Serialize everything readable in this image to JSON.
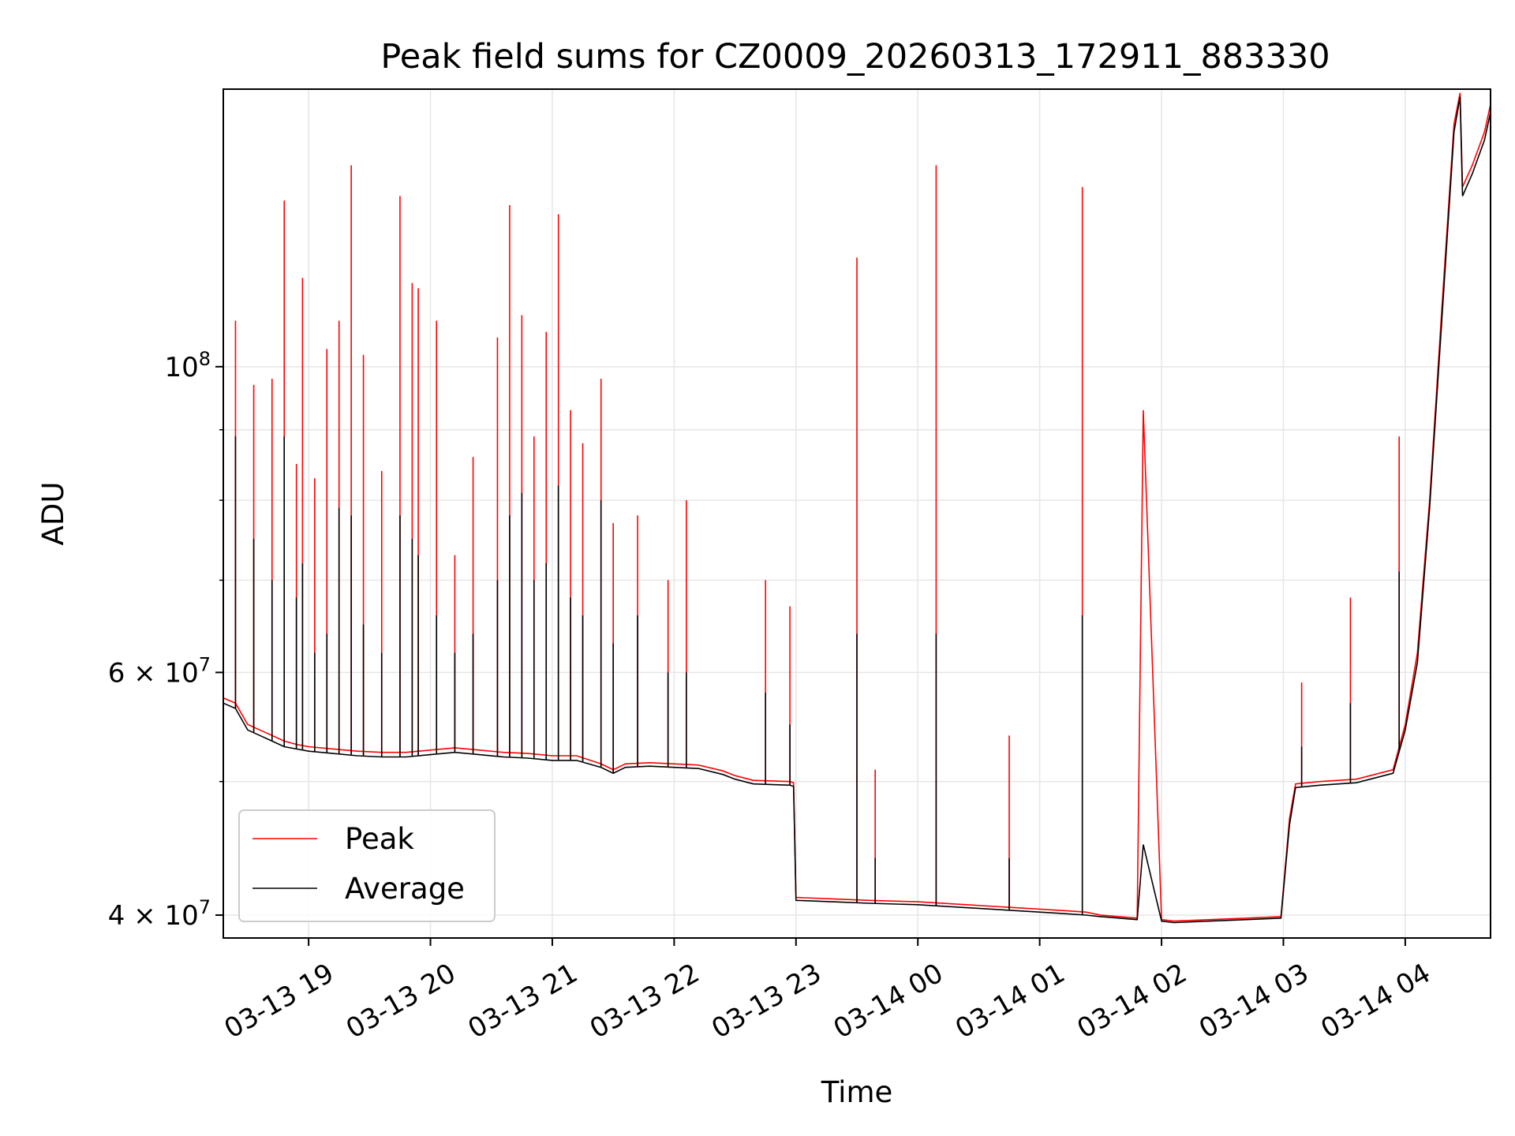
{
  "chart_data": {
    "type": "line",
    "title": "Peak field sums for CZ0009_20260313_172911_883330",
    "xlabel": "Time",
    "ylabel": "ADU",
    "yscale": "log",
    "grid": true,
    "legend_placement": "lower-left",
    "xlim": [
      -0.7,
      9.7
    ],
    "ylim": [
      38500000,
      159000000
    ],
    "x_ticks": [
      {
        "value": 0,
        "label": "03-13 19"
      },
      {
        "value": 1,
        "label": "03-13 20"
      },
      {
        "value": 2,
        "label": "03-13 21"
      },
      {
        "value": 3,
        "label": "03-13 22"
      },
      {
        "value": 4,
        "label": "03-13 23"
      },
      {
        "value": 5,
        "label": "03-14 00"
      },
      {
        "value": 6,
        "label": "03-14 01"
      },
      {
        "value": 7,
        "label": "03-14 02"
      },
      {
        "value": 8,
        "label": "03-14 03"
      },
      {
        "value": 9,
        "label": "03-14 04"
      }
    ],
    "y_ticks": [
      {
        "value": 40000000,
        "mantissa": "4",
        "exponent": "7"
      },
      {
        "value": 60000000,
        "mantissa": "6",
        "exponent": "7"
      },
      {
        "value": 100000000,
        "mantissa": "10",
        "exponent": "8"
      }
    ],
    "y_minor_ticks": [
      50000000,
      70000000,
      80000000,
      90000000
    ],
    "series": [
      {
        "name": "Peak",
        "color": "#ff0000",
        "x": [
          -0.7,
          -0.6,
          -0.5,
          -0.4,
          -0.3,
          -0.2,
          -0.1,
          0.0,
          0.2,
          0.4,
          0.6,
          0.8,
          1.0,
          1.2,
          1.4,
          1.6,
          1.8,
          2.0,
          2.2,
          2.4,
          2.5,
          2.6,
          2.8,
          3.0,
          3.2,
          3.4,
          3.5,
          3.65,
          3.95,
          3.98,
          4.0,
          4.3,
          4.6,
          5.0,
          5.4,
          5.8,
          6.2,
          6.38,
          6.5,
          6.8,
          6.85,
          7.0,
          7.1,
          7.4,
          7.7,
          7.98,
          8.05,
          8.1,
          8.3,
          8.6,
          8.9,
          9.0,
          9.1,
          9.2,
          9.3,
          9.4,
          9.45,
          9.47,
          9.55,
          9.65,
          9.7
        ],
        "y": [
          57500000,
          57000000,
          55000000,
          54500000,
          54000000,
          53500000,
          53200000,
          53000000,
          52800000,
          52600000,
          52500000,
          52500000,
          52700000,
          52900000,
          52700000,
          52500000,
          52400000,
          52200000,
          52200000,
          51500000,
          51000000,
          51500000,
          51600000,
          51500000,
          51400000,
          50900000,
          50500000,
          50100000,
          50000000,
          49900000,
          41200000,
          41100000,
          41000000,
          40900000,
          40700000,
          40500000,
          40300000,
          40200000,
          40000000,
          39800000,
          93000000,
          39700000,
          39600000,
          39700000,
          39800000,
          39900000,
          47000000,
          49800000,
          50000000,
          50200000,
          51000000,
          55000000,
          62000000,
          80000000,
          110000000,
          150000000,
          158000000,
          135000000,
          140000000,
          148000000,
          155000000
        ]
      },
      {
        "name": "Average",
        "color": "#000000",
        "x": [
          -0.7,
          -0.6,
          -0.5,
          -0.4,
          -0.3,
          -0.2,
          -0.1,
          0.0,
          0.2,
          0.4,
          0.6,
          0.8,
          1.0,
          1.2,
          1.4,
          1.6,
          1.8,
          2.0,
          2.2,
          2.4,
          2.5,
          2.6,
          2.8,
          3.0,
          3.2,
          3.4,
          3.5,
          3.65,
          3.95,
          3.98,
          4.0,
          4.3,
          4.6,
          5.0,
          5.4,
          5.8,
          6.2,
          6.38,
          6.5,
          6.8,
          6.85,
          7.0,
          7.1,
          7.4,
          7.7,
          7.98,
          8.05,
          8.1,
          8.3,
          8.6,
          8.9,
          9.0,
          9.1,
          9.2,
          9.3,
          9.4,
          9.45,
          9.47,
          9.55,
          9.65,
          9.7
        ],
        "y": [
          57000000,
          56500000,
          54500000,
          54000000,
          53500000,
          53000000,
          52800000,
          52600000,
          52400000,
          52200000,
          52100000,
          52100000,
          52300000,
          52500000,
          52300000,
          52100000,
          52000000,
          51800000,
          51800000,
          51200000,
          50700000,
          51200000,
          51300000,
          51200000,
          51100000,
          50600000,
          50200000,
          49800000,
          49700000,
          49600000,
          41000000,
          40900000,
          40800000,
          40700000,
          40500000,
          40300000,
          40100000,
          40000000,
          39900000,
          39700000,
          45000000,
          39600000,
          39500000,
          39600000,
          39700000,
          39800000,
          46500000,
          49500000,
          49700000,
          49900000,
          50700000,
          54500000,
          61000000,
          79000000,
          108000000,
          148000000,
          157000000,
          133000000,
          138000000,
          146000000,
          153000000
        ]
      }
    ],
    "spikes": [
      {
        "x": -0.6,
        "peak": 108000000,
        "avg": 89000000
      },
      {
        "x": -0.45,
        "peak": 97000000,
        "avg": 75000000
      },
      {
        "x": -0.3,
        "peak": 98000000,
        "avg": 70000000
      },
      {
        "x": -0.2,
        "peak": 132000000,
        "avg": 89000000
      },
      {
        "x": -0.1,
        "peak": 85000000,
        "avg": 68000000
      },
      {
        "x": -0.05,
        "peak": 116000000,
        "avg": 72000000
      },
      {
        "x": 0.05,
        "peak": 83000000,
        "avg": 62000000
      },
      {
        "x": 0.15,
        "peak": 103000000,
        "avg": 64000000
      },
      {
        "x": 0.25,
        "peak": 108000000,
        "avg": 79000000
      },
      {
        "x": 0.35,
        "peak": 140000000,
        "avg": 78000000
      },
      {
        "x": 0.45,
        "peak": 102000000,
        "avg": 65000000
      },
      {
        "x": 0.6,
        "peak": 84000000,
        "avg": 62000000
      },
      {
        "x": 0.75,
        "peak": 133000000,
        "avg": 78000000
      },
      {
        "x": 0.85,
        "peak": 115000000,
        "avg": 75000000
      },
      {
        "x": 0.9,
        "peak": 114000000,
        "avg": 73000000
      },
      {
        "x": 1.05,
        "peak": 108000000,
        "avg": 66000000
      },
      {
        "x": 1.2,
        "peak": 73000000,
        "avg": 62000000
      },
      {
        "x": 1.35,
        "peak": 86000000,
        "avg": 64000000
      },
      {
        "x": 1.55,
        "peak": 105000000,
        "avg": 70000000
      },
      {
        "x": 1.65,
        "peak": 131000000,
        "avg": 78000000
      },
      {
        "x": 1.75,
        "peak": 109000000,
        "avg": 81000000
      },
      {
        "x": 1.85,
        "peak": 89000000,
        "avg": 70000000
      },
      {
        "x": 1.95,
        "peak": 106000000,
        "avg": 72000000
      },
      {
        "x": 2.05,
        "peak": 129000000,
        "avg": 82000000
      },
      {
        "x": 2.15,
        "peak": 93000000,
        "avg": 68000000
      },
      {
        "x": 2.25,
        "peak": 88000000,
        "avg": 66000000
      },
      {
        "x": 2.4,
        "peak": 98000000,
        "avg": 80000000
      },
      {
        "x": 2.5,
        "peak": 77000000,
        "avg": 63000000
      },
      {
        "x": 2.7,
        "peak": 78000000,
        "avg": 66000000
      },
      {
        "x": 2.95,
        "peak": 70000000,
        "avg": 60000000
      },
      {
        "x": 3.1,
        "peak": 80000000,
        "avg": 60000000
      },
      {
        "x": 3.75,
        "peak": 70000000,
        "avg": 58000000
      },
      {
        "x": 3.95,
        "peak": 67000000,
        "avg": 55000000
      },
      {
        "x": 4.5,
        "peak": 120000000,
        "avg": 64000000
      },
      {
        "x": 4.65,
        "peak": 51000000,
        "avg": 44000000
      },
      {
        "x": 5.15,
        "peak": 140000000,
        "avg": 64000000
      },
      {
        "x": 5.75,
        "peak": 54000000,
        "avg": 44000000
      },
      {
        "x": 6.35,
        "peak": 135000000,
        "avg": 66000000
      },
      {
        "x": 8.15,
        "peak": 59000000,
        "avg": 53000000
      },
      {
        "x": 8.55,
        "peak": 68000000,
        "avg": 57000000
      },
      {
        "x": 8.95,
        "peak": 89000000,
        "avg": 71000000
      }
    ]
  }
}
